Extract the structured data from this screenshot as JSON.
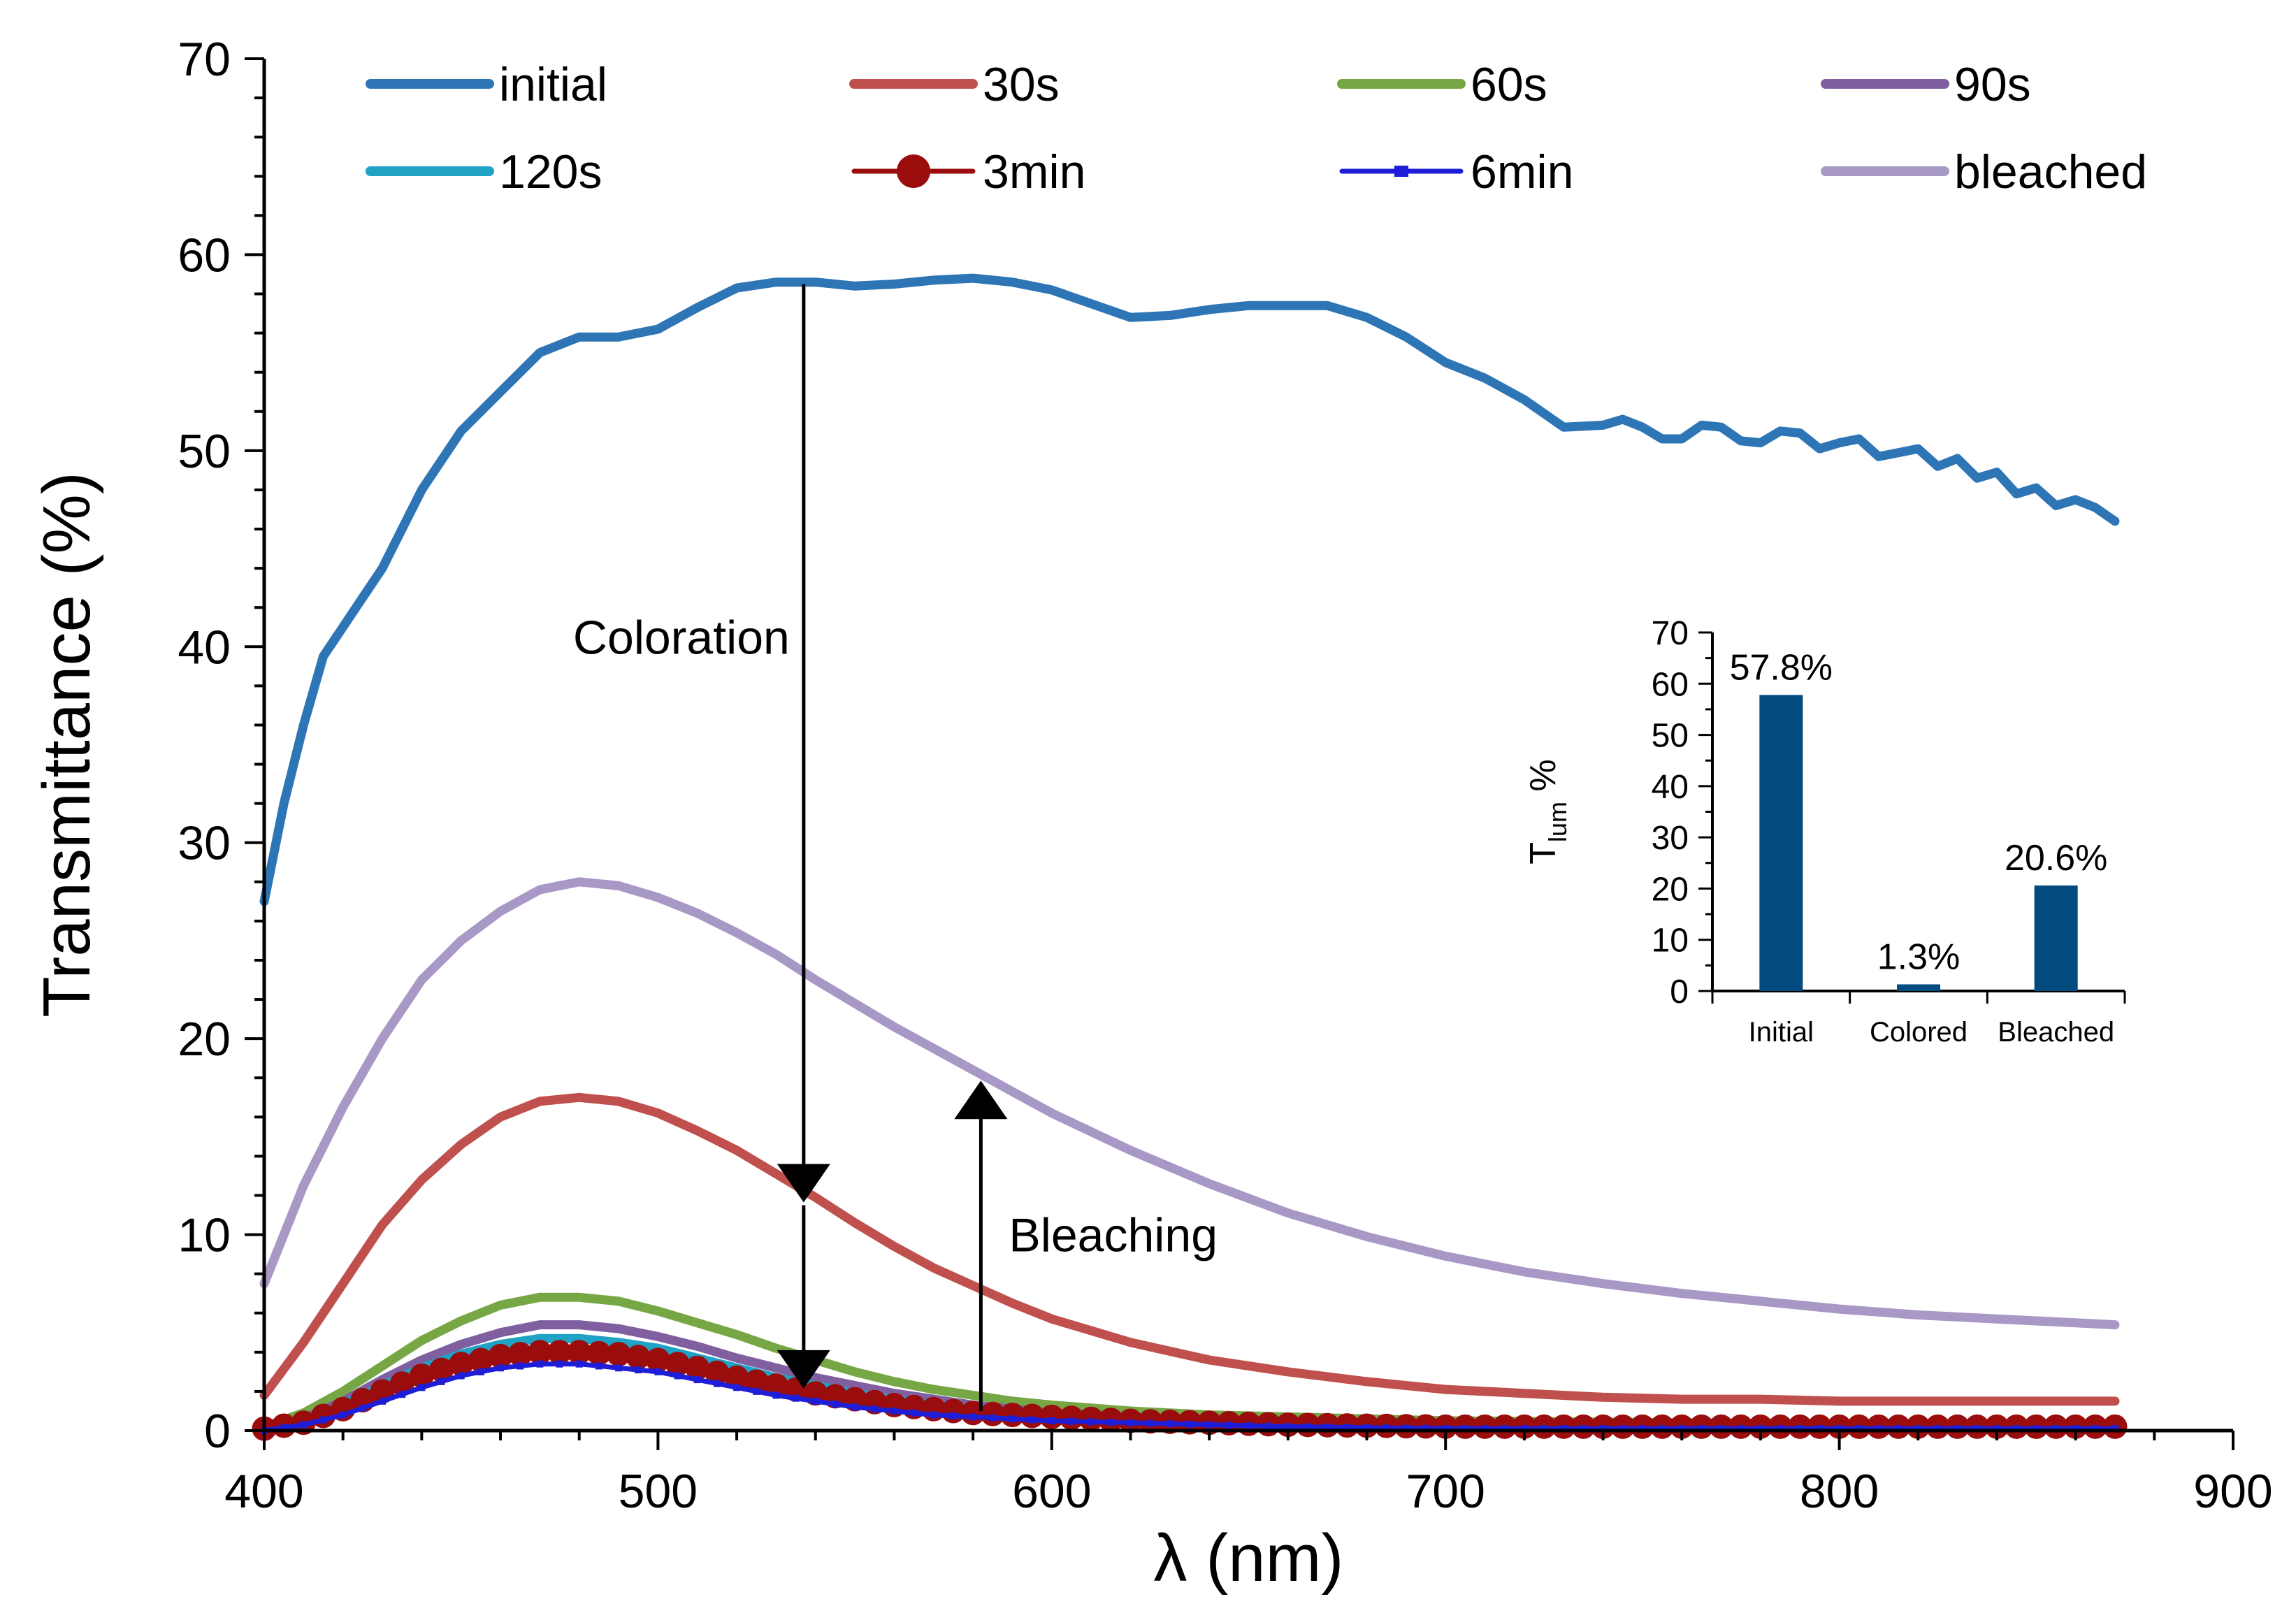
{
  "chart_data": [
    {
      "type": "line",
      "xlabel": "λ (nm)",
      "ylabel": "Transmittance (%)",
      "xlim": [
        400,
        900
      ],
      "ylim": [
        0,
        70
      ],
      "xticks": [
        400,
        500,
        600,
        700,
        800,
        900
      ],
      "yticks": [
        0,
        10,
        20,
        30,
        40,
        50,
        60,
        70
      ],
      "legend_position": "top",
      "annotations": [
        {
          "text": "Coloration",
          "arrow": "down",
          "x": 537,
          "y_from": 58.5,
          "y_to": 12
        },
        {
          "text": "Bleaching",
          "arrow": "up",
          "x": 582,
          "y_from": 1,
          "y_to": 17.5
        }
      ],
      "series": [
        {
          "name": "initial",
          "color": "#2e75b6",
          "marker": "none",
          "x": [
            400,
            405,
            410,
            415,
            420,
            430,
            440,
            450,
            460,
            470,
            480,
            490,
            500,
            510,
            520,
            530,
            540,
            550,
            560,
            570,
            580,
            590,
            600,
            610,
            620,
            630,
            640,
            650,
            660,
            670,
            680,
            690,
            700,
            710,
            720,
            730,
            740,
            745,
            750,
            755,
            760,
            765,
            770,
            775,
            780,
            785,
            790,
            795,
            800,
            805,
            810,
            815,
            820,
            825,
            830,
            835,
            840,
            845,
            850,
            855,
            860,
            865,
            870
          ],
          "y": [
            27,
            32,
            36,
            39.5,
            41,
            44,
            48,
            51,
            53,
            55,
            55.8,
            55.8,
            56.2,
            57.3,
            58.3,
            58.6,
            58.6,
            58.4,
            58.5,
            58.7,
            58.8,
            58.6,
            58.2,
            57.5,
            56.8,
            56.9,
            57.2,
            57.4,
            57.4,
            57.4,
            56.8,
            55.8,
            54.5,
            53.7,
            52.6,
            51.2,
            51.3,
            51.6,
            51.2,
            50.6,
            50.6,
            51.3,
            51.2,
            50.5,
            50.4,
            51.0,
            50.9,
            50.1,
            50.4,
            50.6,
            49.7,
            49.9,
            50.1,
            49.2,
            49.6,
            48.6,
            48.9,
            47.8,
            48.1,
            47.2,
            47.5,
            47.1,
            46.4
          ]
        },
        {
          "name": "30s",
          "color": "#c0504d",
          "marker": "none",
          "x": [
            400,
            410,
            420,
            430,
            440,
            450,
            460,
            470,
            480,
            490,
            500,
            510,
            520,
            530,
            540,
            550,
            560,
            570,
            580,
            590,
            600,
            620,
            640,
            660,
            680,
            700,
            720,
            740,
            760,
            780,
            800,
            820,
            840,
            860,
            870
          ],
          "y": [
            1.8,
            4.5,
            7.5,
            10.5,
            12.8,
            14.6,
            16.0,
            16.8,
            17.0,
            16.8,
            16.2,
            15.3,
            14.3,
            13.1,
            11.9,
            10.6,
            9.4,
            8.3,
            7.4,
            6.5,
            5.7,
            4.5,
            3.6,
            3.0,
            2.5,
            2.1,
            1.9,
            1.7,
            1.6,
            1.6,
            1.5,
            1.5,
            1.5,
            1.5,
            1.5
          ]
        },
        {
          "name": "60s",
          "color": "#77a644",
          "marker": "none",
          "x": [
            400,
            410,
            420,
            430,
            440,
            450,
            460,
            470,
            480,
            490,
            500,
            510,
            520,
            530,
            540,
            550,
            560,
            570,
            580,
            590,
            600,
            620,
            640,
            660,
            700,
            760,
            820,
            870
          ],
          "y": [
            0.2,
            0.9,
            2.0,
            3.3,
            4.6,
            5.6,
            6.4,
            6.8,
            6.8,
            6.6,
            6.1,
            5.5,
            4.9,
            4.2,
            3.6,
            3.0,
            2.5,
            2.1,
            1.8,
            1.5,
            1.3,
            1.0,
            0.8,
            0.7,
            0.5,
            0.4,
            0.3,
            0.3
          ]
        },
        {
          "name": "90s",
          "color": "#7f5fa0",
          "marker": "none",
          "x": [
            400,
            410,
            420,
            430,
            440,
            450,
            460,
            470,
            480,
            490,
            500,
            510,
            520,
            530,
            540,
            550,
            560,
            570,
            580,
            590,
            600,
            620,
            640,
            660,
            700,
            760,
            820,
            870
          ],
          "y": [
            0.1,
            0.6,
            1.5,
            2.6,
            3.6,
            4.4,
            5.0,
            5.4,
            5.4,
            5.2,
            4.8,
            4.3,
            3.7,
            3.2,
            2.7,
            2.3,
            1.9,
            1.6,
            1.3,
            1.1,
            0.9,
            0.7,
            0.5,
            0.4,
            0.3,
            0.2,
            0.2,
            0.2
          ]
        },
        {
          "name": "120s",
          "color": "#1fa2c4",
          "marker": "none",
          "x": [
            400,
            410,
            420,
            430,
            440,
            450,
            460,
            470,
            480,
            490,
            500,
            510,
            520,
            530,
            540,
            550,
            560,
            570,
            580,
            590,
            600,
            620,
            640,
            660,
            700,
            760,
            820,
            870
          ],
          "y": [
            0.1,
            0.5,
            1.3,
            2.3,
            3.2,
            3.9,
            4.4,
            4.7,
            4.7,
            4.5,
            4.2,
            3.7,
            3.2,
            2.7,
            2.3,
            1.9,
            1.6,
            1.3,
            1.1,
            0.9,
            0.8,
            0.6,
            0.4,
            0.3,
            0.2,
            0.2,
            0.1,
            0.1
          ]
        },
        {
          "name": "3min",
          "color": "#9b0c0c",
          "marker": "circle",
          "x": [
            400,
            410,
            420,
            430,
            440,
            450,
            460,
            470,
            480,
            490,
            500,
            510,
            520,
            530,
            540,
            550,
            560,
            570,
            580,
            590,
            600,
            620,
            640,
            660,
            700,
            760,
            820,
            870
          ],
          "y": [
            0.1,
            0.4,
            1.1,
            2.0,
            2.8,
            3.4,
            3.8,
            4.0,
            4.0,
            3.9,
            3.6,
            3.2,
            2.7,
            2.3,
            1.9,
            1.6,
            1.3,
            1.1,
            0.9,
            0.8,
            0.7,
            0.5,
            0.4,
            0.3,
            0.2,
            0.2,
            0.2,
            0.2
          ]
        },
        {
          "name": "6min",
          "color": "#1e1ed8",
          "marker": "square",
          "x": [
            400,
            410,
            420,
            430,
            440,
            450,
            460,
            470,
            480,
            490,
            500,
            510,
            520,
            530,
            540,
            550,
            560,
            570,
            580,
            590,
            600,
            620,
            640,
            660,
            700,
            760,
            820,
            870
          ],
          "y": [
            0.0,
            0.3,
            0.8,
            1.5,
            2.2,
            2.8,
            3.2,
            3.4,
            3.4,
            3.2,
            3.0,
            2.6,
            2.2,
            1.8,
            1.5,
            1.2,
            1.0,
            0.8,
            0.7,
            0.6,
            0.5,
            0.4,
            0.3,
            0.2,
            0.1,
            0.1,
            0.1,
            0.1
          ]
        },
        {
          "name": "bleached",
          "color": "#a898c6",
          "marker": "none",
          "x": [
            400,
            405,
            410,
            420,
            430,
            440,
            450,
            460,
            470,
            480,
            490,
            500,
            510,
            520,
            530,
            540,
            550,
            560,
            570,
            580,
            590,
            600,
            620,
            640,
            660,
            680,
            700,
            720,
            740,
            760,
            780,
            800,
            820,
            840,
            860,
            870
          ],
          "y": [
            7.5,
            10,
            12.5,
            16.5,
            20,
            23,
            25,
            26.5,
            27.6,
            28.0,
            27.8,
            27.2,
            26.4,
            25.4,
            24.3,
            23.0,
            21.8,
            20.6,
            19.5,
            18.4,
            17.3,
            16.2,
            14.3,
            12.6,
            11.1,
            9.9,
            8.9,
            8.1,
            7.5,
            7.0,
            6.6,
            6.2,
            5.9,
            5.7,
            5.5,
            5.4
          ]
        }
      ]
    },
    {
      "type": "bar",
      "ylabel": "T",
      "ylabel_sub": "lum",
      "ylabel_suffix": " %",
      "ylim": [
        0,
        70
      ],
      "yticks": [
        0,
        10,
        20,
        30,
        40,
        50,
        60,
        70
      ],
      "categories": [
        "Initial",
        "Colored",
        "Bleached"
      ],
      "values": [
        57.8,
        1.3,
        20.6
      ],
      "data_labels": [
        "57.8%",
        "1.3%",
        "20.6%"
      ],
      "bar_color": "#034a80"
    }
  ]
}
